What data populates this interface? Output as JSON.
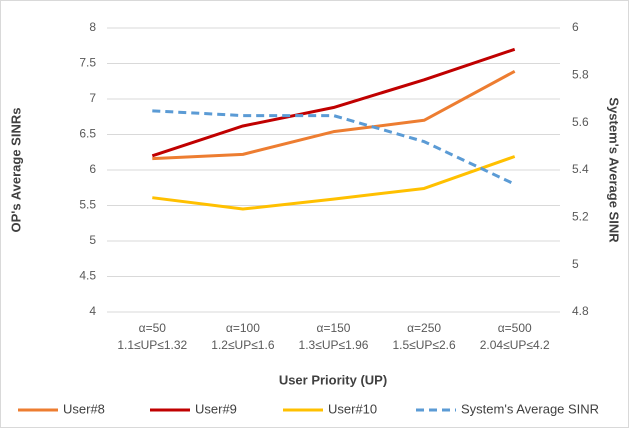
{
  "chart_data": {
    "type": "line",
    "x_label": "User Priority (UP)",
    "y_label": "OP's Average SINRs",
    "y2_label": "System's Average SINR",
    "categories": [
      [
        "α=50",
        "1.1≤UP≤1.32"
      ],
      [
        "α=100",
        "1.2≤UP≤1.6"
      ],
      [
        "α=150",
        "1.3≤UP≤1.96"
      ],
      [
        "α=250",
        "1.5≤UP≤2.6"
      ],
      [
        "α=500",
        "2.04≤UP≤4.2"
      ]
    ],
    "series": [
      {
        "name": "User#8",
        "color": "#ED7D31",
        "values": [
          6.16,
          6.22,
          6.54,
          6.7,
          7.39
        ]
      },
      {
        "name": "User#9",
        "color": "#C00000",
        "values": [
          6.2,
          6.62,
          6.88,
          7.27,
          7.7
        ]
      },
      {
        "name": "User#10",
        "color": "#FFC000",
        "values": [
          5.61,
          5.45,
          5.59,
          5.74,
          6.19
        ]
      },
      {
        "name": "System's Average SINR",
        "color": "#5B9BD5",
        "dashed": true,
        "axis": "y2",
        "values": [
          5.65,
          5.63,
          5.63,
          5.52,
          5.34
        ]
      }
    ],
    "ylim": [
      4,
      8
    ],
    "yticks": [
      4,
      4.5,
      5,
      5.5,
      6,
      6.5,
      7,
      7.5,
      8
    ],
    "y2lim": [
      4.8,
      6
    ],
    "y2ticks": [
      4.8,
      5,
      5.2,
      5.4,
      5.6,
      5.8,
      6
    ],
    "grid": true,
    "legend": "bottom"
  }
}
